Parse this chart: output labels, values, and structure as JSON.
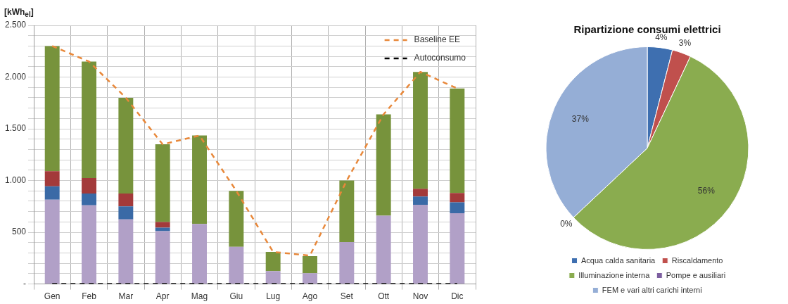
{
  "chart_data": [
    {
      "type": "bar",
      "ylabel": "[kWh$_{el}$]",
      "stacked": true,
      "grid": true,
      "legend": "top right",
      "marker": "none",
      "categories": [
        "Gen",
        "Feb",
        "Mar",
        "Apr",
        "Mag",
        "Giu",
        "Lug",
        "Ago",
        "Set",
        "Ott",
        "Nov",
        "Dic"
      ],
      "ylim": [
        0,
        2500
      ],
      "yticks": [
        {
          "value": 0,
          "label": "-"
        },
        {
          "value": 100,
          "label": null
        },
        {
          "value": 200,
          "label": null
        },
        {
          "value": 300,
          "label": null
        },
        {
          "value": 400,
          "label": null
        },
        500,
        {
          "value": 600,
          "label": null
        },
        {
          "value": 700,
          "label": null
        },
        {
          "value": 800,
          "label": null
        },
        {
          "value": 900,
          "label": null
        },
        {
          "value": 1000,
          "label": "1.000"
        },
        {
          "value": 1100,
          "label": null
        },
        {
          "value": 1200,
          "label": null
        },
        {
          "value": 1300,
          "label": null
        },
        {
          "value": 1400,
          "label": null
        },
        {
          "value": 1500,
          "label": "1.500"
        },
        {
          "value": 1600,
          "label": null
        },
        {
          "value": 1700,
          "label": null
        },
        {
          "value": 1800,
          "label": null
        },
        {
          "value": 1900,
          "label": null
        },
        {
          "value": 2000,
          "label": "2.000"
        },
        {
          "value": 2100,
          "label": null
        },
        {
          "value": 2200,
          "label": null
        },
        {
          "value": 2300,
          "label": null
        },
        {
          "value": 2400,
          "label": null
        },
        {
          "value": 2500,
          "label": "2.500"
        }
      ],
      "series": [
        {
          "color": "#b1a0c7",
          "values": [
            815,
            760,
            625,
            510,
            580,
            360,
            125,
            105,
            405,
            660,
            765,
            685
          ]
        },
        {
          "color": "#3a6aa6",
          "values": [
            130,
            115,
            125,
            35,
            0,
            0,
            0,
            0,
            0,
            0,
            80,
            105
          ]
        },
        {
          "color": "#a33a3a",
          "values": [
            145,
            150,
            125,
            55,
            0,
            0,
            0,
            0,
            0,
            0,
            75,
            90
          ]
        },
        {
          "color": "#77933c",
          "values": [
            1210,
            1125,
            925,
            750,
            855,
            540,
            185,
            165,
            595,
            980,
            1130,
            1010
          ]
        },
        {
          "type": "line",
          "name": "Baseline EE",
          "color": "#e8883a",
          "line_style": "dashed",
          "values": [
            2300,
            2150,
            1800,
            1350,
            1435,
            900,
            310,
            275,
            1000,
            1640,
            2050,
            1890
          ]
        },
        {
          "type": "line",
          "name": "Autoconsumo",
          "color": "#000000",
          "line_style": "dashed",
          "values": [
            0,
            0,
            0,
            0,
            0,
            0,
            0,
            0,
            0,
            0,
            0,
            0
          ]
        }
      ]
    },
    {
      "type": "pie",
      "title": "Ripartizione consumi elettrici",
      "legend": "bottom",
      "categories": [
        "Acqua calda sanitaria",
        "Riscaldamento",
        "Illuminazione interna",
        "Pompe e ausiliari",
        "FEM e vari altri carichi interni"
      ],
      "values": [
        4,
        3,
        56,
        0,
        37
      ],
      "value_labels": [
        "4%",
        "3%",
        "56%",
        "0%",
        "37%"
      ],
      "colors": [
        "#3e6fb0",
        "#c0504d",
        "#8aac4f",
        "#7d5fa0",
        "#95aed6"
      ]
    }
  ]
}
